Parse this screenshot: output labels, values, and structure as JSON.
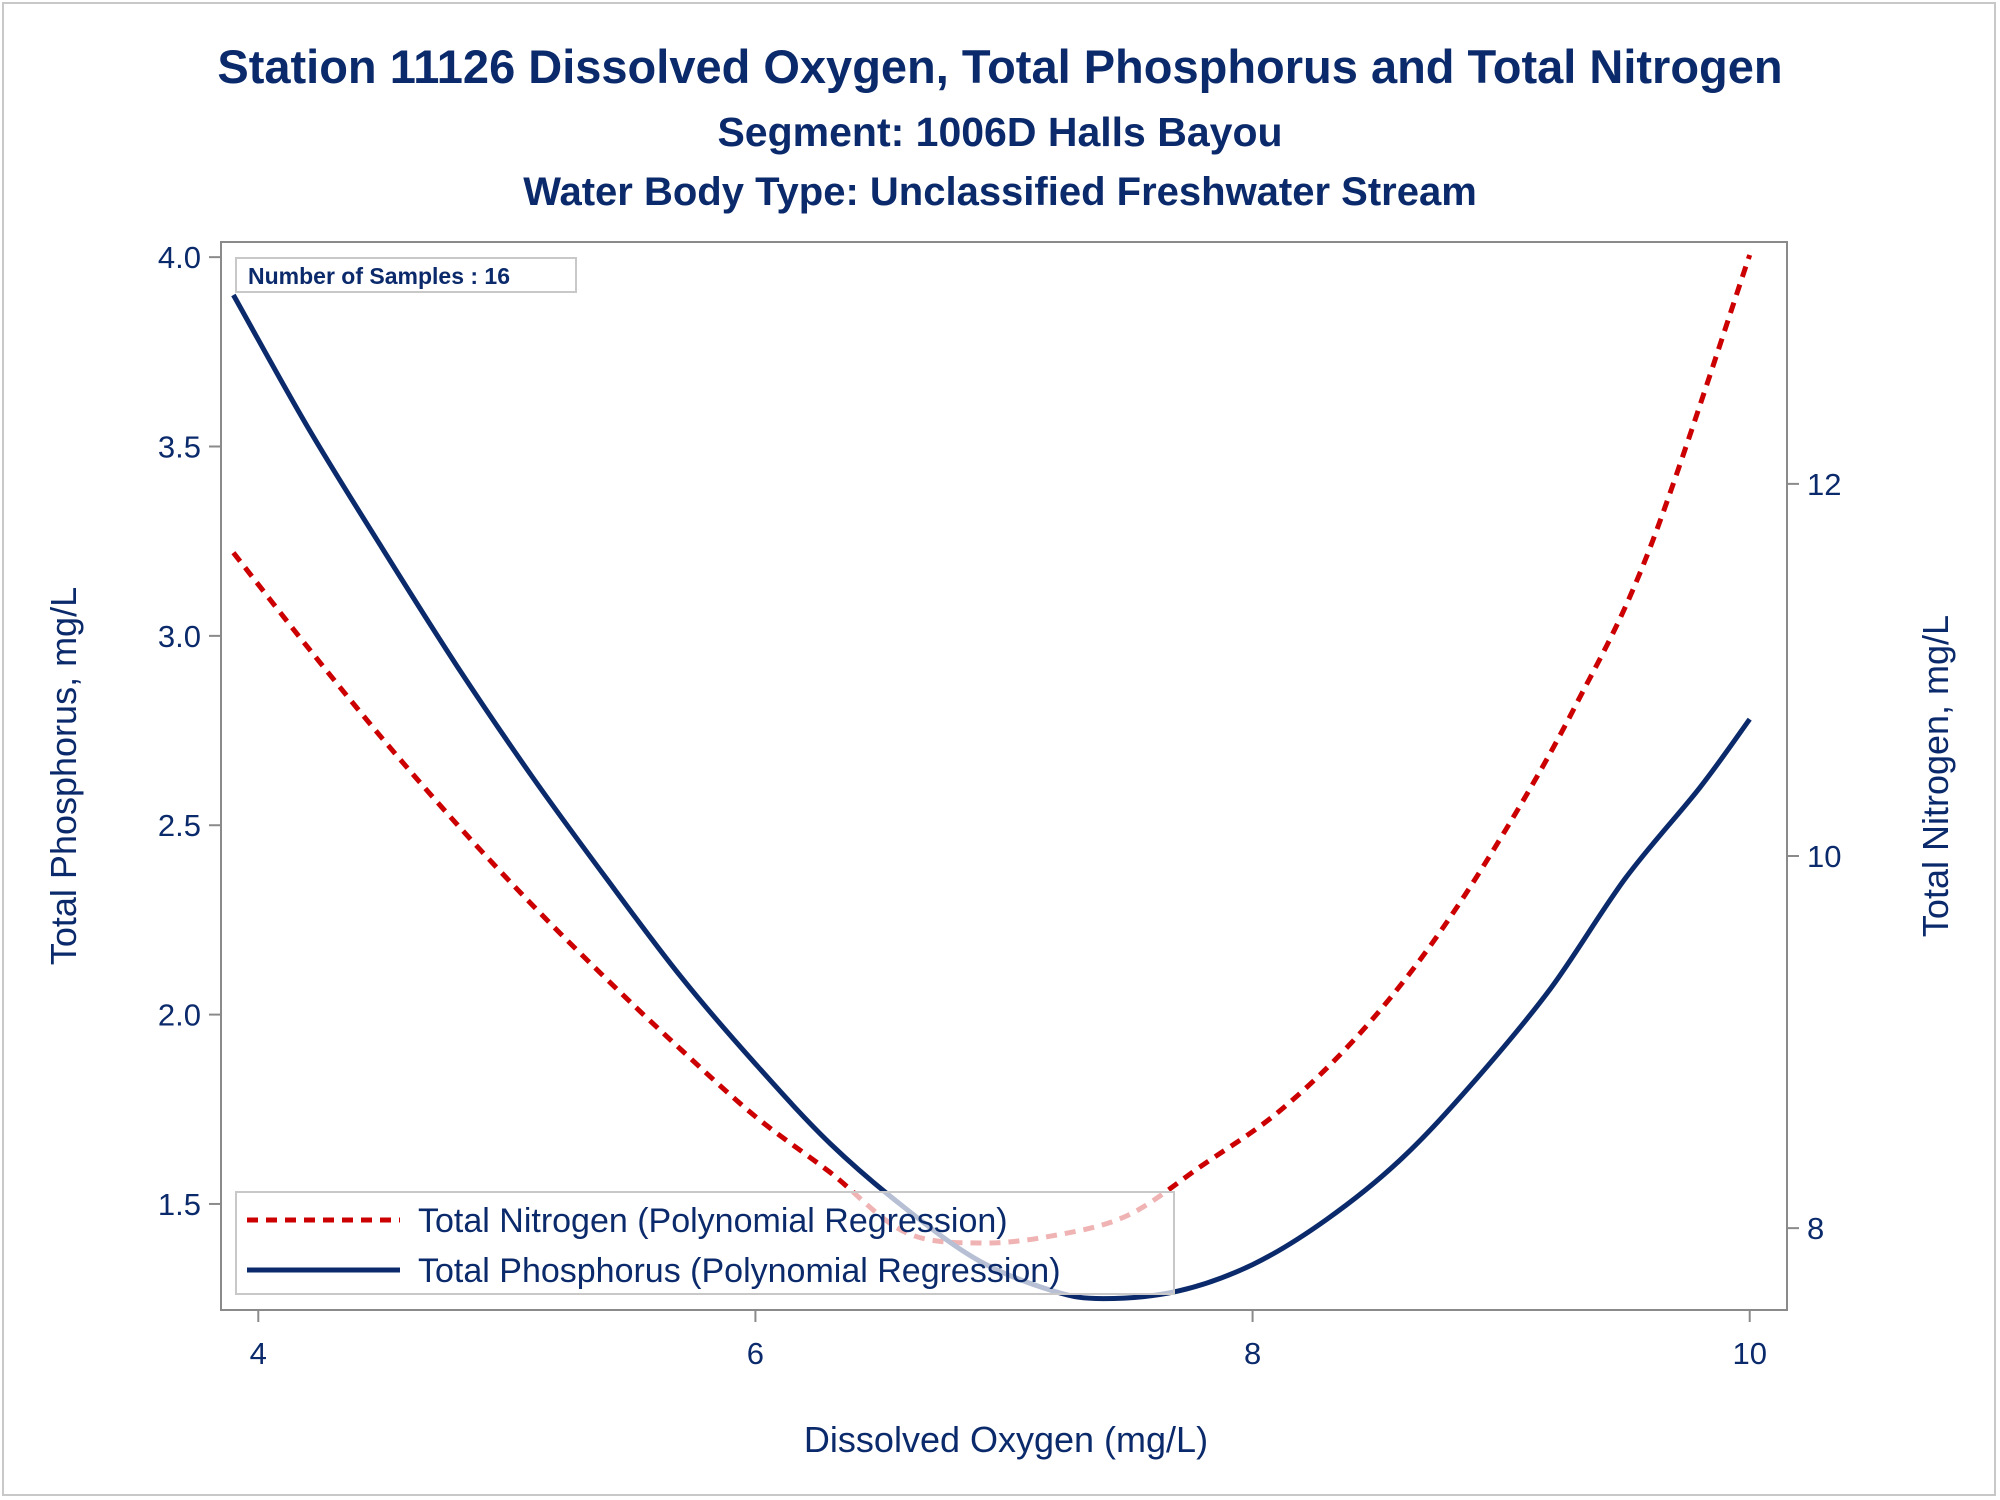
{
  "chart_data": {
    "type": "line",
    "title": "Station 11126  Dissolved Oxygen, Total Phosphorus and Total Nitrogen",
    "subtitle": "Segment: 1006D  Halls Bayou",
    "subtitle2": "Water Body Type: Unclassified Freshwater Stream",
    "xlabel": "Dissolved Oxygen (mg/L)",
    "ylabel": "Total Phosphorus, mg/L",
    "y2label": "Total Nitrogen, mg/L",
    "xlim": [
      3.85,
      10.15
    ],
    "ylim": [
      1.22,
      4.04
    ],
    "y2lim": [
      7.56,
      13.3
    ],
    "x_ticks": [
      "4",
      "6",
      "8",
      "10"
    ],
    "y_ticks": [
      "1.5",
      "2.0",
      "2.5",
      "3.0",
      "3.5",
      "4.0"
    ],
    "y2_ticks": [
      "8",
      "10",
      "12"
    ],
    "inset_label": "Number of Samples : 16",
    "legend_position": "bottom-left",
    "grid": false,
    "series": [
      {
        "name": "Total Nitrogen (Polynomial Regression)",
        "axis": "y2",
        "style": "dashed",
        "color": "#cc0000",
        "x": [
          3.9,
          4.2,
          4.5,
          4.8,
          5.1,
          5.4,
          5.7,
          6.0,
          6.3,
          6.6,
          6.9,
          7.2,
          7.5,
          7.8,
          8.1,
          8.4,
          8.7,
          9.0,
          9.3,
          9.6,
          10.0
        ],
        "y": [
          11.63,
          11.12,
          10.63,
          10.17,
          9.74,
          9.34,
          8.96,
          8.6,
          8.3,
          7.98,
          7.92,
          7.96,
          8.07,
          8.34,
          8.62,
          9.0,
          9.49,
          10.1,
          10.81,
          11.66,
          13.23
        ]
      },
      {
        "name": "Total Phosphorus (Polynomial Regression)",
        "axis": "y",
        "style": "solid",
        "color": "#0b2a6b",
        "x": [
          3.9,
          4.2,
          4.5,
          4.8,
          5.1,
          5.4,
          5.7,
          6.0,
          6.3,
          6.6,
          6.9,
          7.2,
          7.4,
          7.7,
          8.0,
          8.3,
          8.6,
          8.9,
          9.2,
          9.5,
          9.8,
          10.0
        ],
        "y": [
          3.9,
          3.55,
          3.23,
          2.92,
          2.63,
          2.36,
          2.1,
          1.87,
          1.66,
          1.49,
          1.35,
          1.27,
          1.25,
          1.27,
          1.34,
          1.46,
          1.62,
          1.83,
          2.07,
          2.36,
          2.6,
          2.78
        ]
      }
    ]
  }
}
